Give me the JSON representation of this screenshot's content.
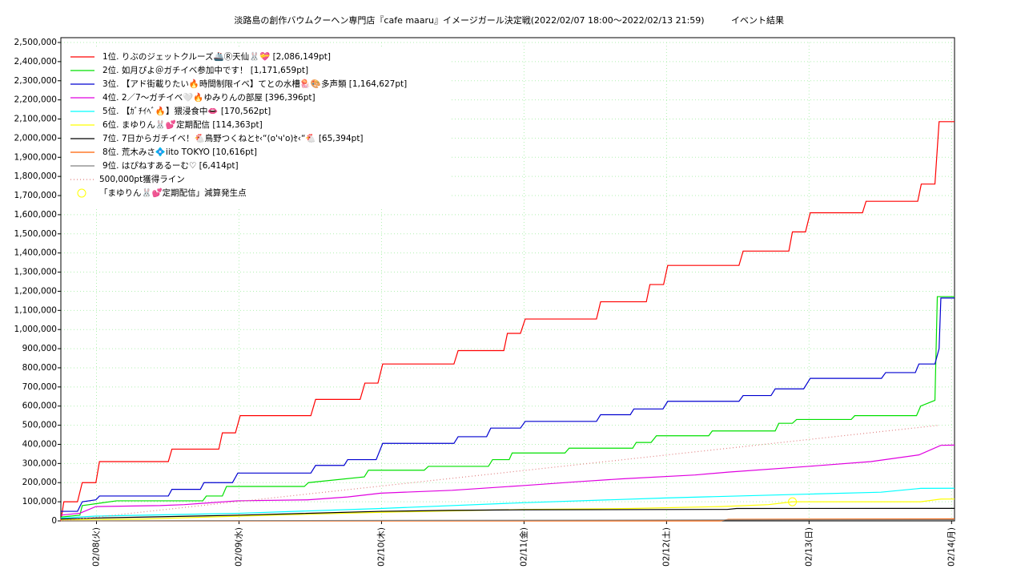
{
  "chart_data": {
    "type": "line",
    "title": "淡路島の創作バウムクーヘン専門店『cafe maaru』イメージガール決定戦(2022/02/07 18:00～2022/02/13 21:59)",
    "subtitle": "イベント結果",
    "xlim": [
      0,
      150.5
    ],
    "xticks": [
      {
        "value": 6,
        "label": "02/08(火)"
      },
      {
        "value": 30,
        "label": "02/09(水)"
      },
      {
        "value": 54,
        "label": "02/10(木)"
      },
      {
        "value": 78,
        "label": "02/11(金)"
      },
      {
        "value": 102,
        "label": "02/12(土)"
      },
      {
        "value": 126,
        "label": "02/13(日)"
      },
      {
        "value": 150,
        "label": "02/14(月)"
      }
    ],
    "ylim": [
      0,
      2500000
    ],
    "yticks": [
      0,
      {
        "value": 100000,
        "label": "100,000"
      },
      {
        "value": 200000,
        "label": "200,000"
      },
      {
        "value": 300000,
        "label": "300,000"
      },
      {
        "value": 400000,
        "label": "400,000"
      },
      {
        "value": 500000,
        "label": "500,000"
      },
      {
        "value": 600000,
        "label": "600,000"
      },
      {
        "value": 700000,
        "label": "700,000"
      },
      {
        "value": 800000,
        "label": "800,000"
      },
      {
        "value": 900000,
        "label": "900,000"
      },
      {
        "value": 1000000,
        "label": "1,000,000"
      },
      {
        "value": 1100000,
        "label": "1,100,000"
      },
      {
        "value": 1200000,
        "label": "1,200,000"
      },
      {
        "value": 1300000,
        "label": "1,300,000"
      },
      {
        "value": 1400000,
        "label": "1,400,000"
      },
      {
        "value": 1500000,
        "label": "1,500,000"
      },
      {
        "value": 1600000,
        "label": "1,600,000"
      },
      {
        "value": 1700000,
        "label": "1,700,000"
      },
      {
        "value": 1800000,
        "label": "1,800,000"
      },
      {
        "value": 1900000,
        "label": "1,900,000"
      },
      {
        "value": 2000000,
        "label": "2,000,000"
      },
      {
        "value": 2100000,
        "label": "2,100,000"
      },
      {
        "value": 2200000,
        "label": "2,200,000"
      },
      {
        "value": 2300000,
        "label": "2,300,000"
      },
      {
        "value": 2400000,
        "label": "2,400,000"
      },
      {
        "value": 2500000,
        "label": "2,500,000"
      }
    ],
    "grid": true,
    "legend": "upper left",
    "series": [
      {
        "name": "1位. りぶのジェットクルーズ🚢Ⓡ天仙🐰💝 [2,086,149pt]",
        "color": "#ff0000",
        "x": [
          0,
          0.5,
          2.8,
          3.6,
          5.9,
          6.5,
          18.1,
          18.7,
          26.6,
          27.2,
          29.4,
          30.2,
          42.1,
          42.9,
          50.4,
          51.2,
          53.4,
          54.2,
          66.2,
          66.9,
          74.6,
          75.2,
          77.4,
          78.2,
          90.2,
          90.9,
          98.6,
          99.2,
          101.5,
          102.2,
          114.2,
          114.9,
          122.6,
          123.2,
          125.4,
          126.2,
          135.0,
          135.6,
          144.3,
          144.9,
          147.2,
          147.9,
          150.5
        ],
        "values": [
          0,
          100000,
          100000,
          200000,
          200000,
          310000,
          310000,
          375000,
          375000,
          460000,
          460000,
          550000,
          550000,
          635000,
          635000,
          720000,
          720000,
          820000,
          820000,
          890000,
          890000,
          980000,
          980000,
          1055000,
          1055000,
          1145000,
          1145000,
          1235000,
          1235000,
          1335000,
          1335000,
          1410000,
          1410000,
          1510000,
          1510000,
          1610000,
          1610000,
          1670000,
          1670000,
          1760000,
          1760000,
          2086149,
          2086149
        ]
      },
      {
        "name": "2位. 如月ぴよ＠ガチイベ参加中です！ [1,171,659pt]",
        "color": "#00e000",
        "x": [
          0,
          3.2,
          3.6,
          9.4,
          23.9,
          24.5,
          27.2,
          27.9,
          41.0,
          41.7,
          51.1,
          51.8,
          61.2,
          61.9,
          72.0,
          72.7,
          75.5,
          76.0,
          84.9,
          85.6,
          96.3,
          96.9,
          99.4,
          100.3,
          109.1,
          109.7,
          120.3,
          120.9,
          123.2,
          123.9,
          133.1,
          133.7,
          144.1,
          144.8,
          147.2,
          147.6,
          150.5
        ],
        "values": [
          20000,
          30000,
          80000,
          105000,
          105000,
          130000,
          130000,
          180000,
          180000,
          200000,
          230000,
          265000,
          265000,
          285000,
          285000,
          320000,
          320000,
          355000,
          355000,
          380000,
          380000,
          410000,
          410000,
          445000,
          445000,
          470000,
          470000,
          510000,
          510000,
          530000,
          530000,
          550000,
          550000,
          600000,
          630000,
          1171659,
          1171659
        ]
      },
      {
        "name": "3位. 【アド街載りたい🔥時間制限イベ】てとの水槽🪼🎨多声類 [1,164,627pt]",
        "color": "#0000d0",
        "x": [
          0,
          2.8,
          3.6,
          5.9,
          6.5,
          18.1,
          18.7,
          23.5,
          24.1,
          28.9,
          29.8,
          42.1,
          42.9,
          47.7,
          48.3,
          53.1,
          54.2,
          66.2,
          66.9,
          71.7,
          72.4,
          77.4,
          78.2,
          90.2,
          90.9,
          95.9,
          96.5,
          101.4,
          102.2,
          114.2,
          114.9,
          119.6,
          120.3,
          125.1,
          126.2,
          138.2,
          138.9,
          143.9,
          144.5,
          147.2,
          147.9,
          148.2,
          150.5
        ],
        "values": [
          50000,
          50000,
          100000,
          110000,
          130000,
          130000,
          165000,
          165000,
          200000,
          200000,
          250000,
          250000,
          290000,
          290000,
          320000,
          320000,
          405000,
          405000,
          440000,
          440000,
          485000,
          485000,
          520000,
          520000,
          555000,
          555000,
          585000,
          585000,
          625000,
          625000,
          655000,
          655000,
          690000,
          690000,
          745000,
          745000,
          775000,
          775000,
          820000,
          820000,
          900000,
          1164627,
          1164627
        ]
      },
      {
        "name": "4位. 2／7〜ガチイベ🤍🔥ゆみりんの部屋 [396,396pt]",
        "color": "#e000e0",
        "x": [
          0,
          3.2,
          5.9,
          16.7,
          20.8,
          29.7,
          41.5,
          48.3,
          53.9,
          65.9,
          78.1,
          87.1,
          94.5,
          106.8,
          112.4,
          125.9,
          136.4,
          144.5,
          148.2,
          150.5
        ],
        "values": [
          30000,
          40000,
          75000,
          80000,
          85000,
          105000,
          110000,
          125000,
          145000,
          160000,
          185000,
          205000,
          220000,
          240000,
          255000,
          285000,
          310000,
          345000,
          395000,
          396396
        ]
      },
      {
        "name": "5位. 【ｶﾞﾁｲﾍﾞ🔥】猥浸食中👄 [170,562pt]",
        "color": "#00ffff",
        "x": [
          0,
          5.9,
          30.2,
          53.9,
          77.9,
          101.9,
          125.9,
          138.1,
          144.8,
          150.5
        ],
        "values": [
          15000,
          25000,
          40000,
          65000,
          95000,
          120000,
          140000,
          150000,
          170000,
          170562
        ]
      },
      {
        "name": "6位. まゆりん🐰💕定期配信 [114,363pt]",
        "color": "#ffff00",
        "x": [
          0,
          14.0,
          30.2,
          53.9,
          77.9,
          96.0,
          111.1,
          119.2,
          123.2,
          144.8,
          148.2,
          150.5
        ],
        "values": [
          5000,
          10000,
          25000,
          45000,
          60000,
          65000,
          75000,
          85000,
          100000,
          100000,
          114000,
          114363
        ]
      },
      {
        "name": "7位. 7日からガチイベ！🐔鳥野つくねとｾ‹“(o'ч'o)ｾ‹“🐔 [65,394pt]",
        "color": "#000000",
        "x": [
          0,
          5.9,
          30.2,
          53.9,
          65.3,
          77.9,
          112.2,
          113.8,
          150.5
        ],
        "values": [
          10000,
          15000,
          30000,
          50000,
          55000,
          58000,
          60000,
          65000,
          65394
        ]
      },
      {
        "name": "8位. 荒木みさ💠iito TOKYO [10,616pt]",
        "color": "#ff6000",
        "x": [
          0,
          111.1,
          112.4,
          150.5
        ],
        "values": [
          0,
          0,
          8000,
          10616
        ]
      },
      {
        "name": "9位. はぴねすあるーむ♡ [6,414pt]",
        "color": "#808080",
        "x": [
          0,
          150.5
        ],
        "values": [
          0,
          6414
        ]
      },
      {
        "name": "500,000pt獲得ライン",
        "color": "#e08080",
        "dash": "dotted",
        "x": [
          0,
          148
        ],
        "values": [
          0,
          500000
        ]
      }
    ],
    "marker": {
      "name": "「まゆりん🐰💕定期配信」減算発生点",
      "color": "#ffff00",
      "x": 123.2,
      "value": 100000
    }
  }
}
